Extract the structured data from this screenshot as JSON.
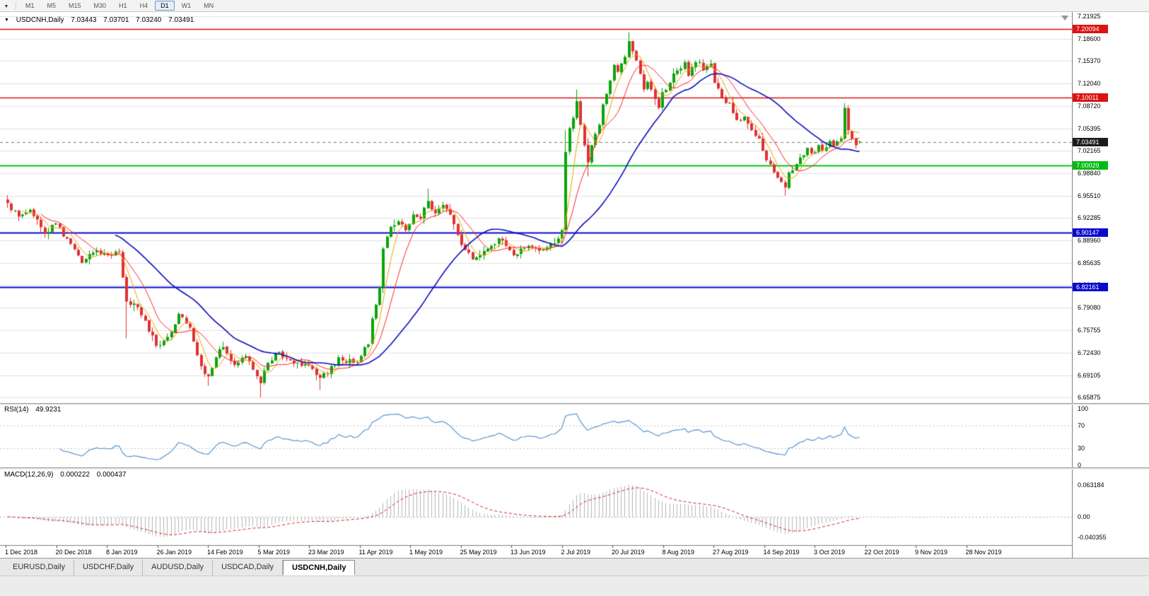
{
  "toolbar": {
    "dropdown_icon": "▼",
    "timeframes": [
      {
        "label": "M1",
        "active": false
      },
      {
        "label": "M5",
        "active": false
      },
      {
        "label": "M15",
        "active": false
      },
      {
        "label": "M30",
        "active": false
      },
      {
        "label": "H1",
        "active": false
      },
      {
        "label": "H4",
        "active": false
      },
      {
        "label": "D1",
        "active": true
      },
      {
        "label": "W1",
        "active": false
      },
      {
        "label": "MN",
        "active": false
      }
    ]
  },
  "chart": {
    "header": {
      "collapser": "▼",
      "symbol": "USDCNH,Daily",
      "open": "7.03443",
      "high": "7.03701",
      "low": "7.03240",
      "close": "7.03491"
    },
    "levels": [
      {
        "label": "7.20094",
        "price": 7.20094,
        "color": "#de1212",
        "badge": "#de1212",
        "width": 1.5,
        "style": "solid"
      },
      {
        "label": "7.10011",
        "price": 7.10011,
        "color": "#de1212",
        "badge": "#de1212",
        "width": 1.5,
        "style": "solid"
      },
      {
        "label": "7.03491",
        "price": 7.03491,
        "color": "#777777",
        "badge": "#1c1c1c",
        "width": 1,
        "style": "dashed"
      },
      {
        "label": "7.00029",
        "price": 7.00029,
        "color": "#00ca10",
        "badge": "#00bb12",
        "width": 2,
        "style": "solid"
      },
      {
        "label": "6.90147",
        "price": 6.90147,
        "color": "#0a0acd",
        "badge": "#0a0acd",
        "width": 2,
        "style": "solid"
      },
      {
        "label": "6.82161",
        "price": 6.82161,
        "color": "#0a0acd",
        "badge": "#0a0acd",
        "width": 2,
        "style": "solid"
      }
    ]
  },
  "chart_data": {
    "type": "candlestick",
    "title": "USDCNH Daily",
    "bars": 230,
    "price_range": [
      6.651,
      7.226
    ],
    "y_labels": [
      "7.21925",
      "7.18600",
      "7.15370",
      "7.12040",
      "7.08720",
      "7.05395",
      "7.02165",
      "6.98840",
      "6.95510",
      "6.92285",
      "6.88960",
      "6.85635",
      "6.82405",
      "6.79080",
      "6.75755",
      "6.72430",
      "6.69105",
      "6.65875"
    ],
    "x_labels": [
      "1 Dec 2018",
      "20 Dec 2018",
      "8 Jan 2019",
      "26 Jan 2019",
      "14 Feb 2019",
      "5 Mar 2019",
      "23 Mar 2019",
      "11 Apr 2019",
      "1 May 2019",
      "25 May 2019",
      "13 Jun 2019",
      "2 Jul 2019",
      "20 Jul 2019",
      "8 Aug 2019",
      "27 Aug 2019",
      "14 Sep 2019",
      "3 Oct 2019",
      "22 Oct 2019",
      "9 Nov 2019",
      "28 Nov 2019"
    ],
    "last_bar": {
      "open": 7.03443,
      "high": 7.03701,
      "low": 7.0324,
      "close": 7.03491
    },
    "close_anchors": [
      [
        0,
        6.945
      ],
      [
        3,
        6.925
      ],
      [
        6,
        6.935
      ],
      [
        10,
        6.9
      ],
      [
        13,
        6.915
      ],
      [
        17,
        6.885
      ],
      [
        20,
        6.857
      ],
      [
        24,
        6.875
      ],
      [
        28,
        6.868
      ],
      [
        30,
        6.873
      ],
      [
        32,
        6.8
      ],
      [
        35,
        6.792
      ],
      [
        37,
        6.772
      ],
      [
        40,
        6.735
      ],
      [
        43,
        6.748
      ],
      [
        46,
        6.782
      ],
      [
        49,
        6.762
      ],
      [
        52,
        6.705
      ],
      [
        54,
        6.69
      ],
      [
        56,
        6.718
      ],
      [
        58,
        6.733
      ],
      [
        61,
        6.707
      ],
      [
        64,
        6.72
      ],
      [
        66,
        6.7
      ],
      [
        68,
        6.68
      ],
      [
        70,
        6.71
      ],
      [
        73,
        6.726
      ],
      [
        75,
        6.716
      ],
      [
        78,
        6.71
      ],
      [
        81,
        6.706
      ],
      [
        84,
        6.688
      ],
      [
        86,
        6.694
      ],
      [
        89,
        6.718
      ],
      [
        93,
        6.71
      ],
      [
        95,
        6.72
      ],
      [
        97,
        6.737
      ],
      [
        98,
        6.775
      ],
      [
        100,
        6.822
      ],
      [
        101,
        6.878
      ],
      [
        103,
        6.91
      ],
      [
        105,
        6.918
      ],
      [
        107,
        6.905
      ],
      [
        109,
        6.928
      ],
      [
        111,
        6.922
      ],
      [
        113,
        6.948
      ],
      [
        115,
        6.93
      ],
      [
        117,
        6.942
      ],
      [
        119,
        6.928
      ],
      [
        121,
        6.898
      ],
      [
        123,
        6.876
      ],
      [
        125,
        6.862
      ],
      [
        127,
        6.868
      ],
      [
        130,
        6.882
      ],
      [
        132,
        6.893
      ],
      [
        134,
        6.882
      ],
      [
        136,
        6.868
      ],
      [
        138,
        6.878
      ],
      [
        140,
        6.882
      ],
      [
        143,
        6.875
      ],
      [
        145,
        6.88
      ],
      [
        147,
        6.886
      ],
      [
        149,
        6.905
      ],
      [
        150,
        7.02
      ],
      [
        151,
        7.055
      ],
      [
        152,
        7.07
      ],
      [
        153,
        7.095
      ],
      [
        154,
        7.06
      ],
      [
        155,
        7.03
      ],
      [
        156,
        7.005
      ],
      [
        157,
        7.03
      ],
      [
        159,
        7.06
      ],
      [
        160,
        7.09
      ],
      [
        162,
        7.125
      ],
      [
        163,
        7.148
      ],
      [
        164,
        7.138
      ],
      [
        166,
        7.16
      ],
      [
        167,
        7.183
      ],
      [
        168,
        7.168
      ],
      [
        170,
        7.135
      ],
      [
        171,
        7.112
      ],
      [
        172,
        7.123
      ],
      [
        174,
        7.098
      ],
      [
        175,
        7.085
      ],
      [
        176,
        7.108
      ],
      [
        178,
        7.122
      ],
      [
        180,
        7.14
      ],
      [
        182,
        7.152
      ],
      [
        183,
        7.132
      ],
      [
        184,
        7.145
      ],
      [
        186,
        7.152
      ],
      [
        187,
        7.14
      ],
      [
        189,
        7.15
      ],
      [
        190,
        7.122
      ],
      [
        192,
        7.1
      ],
      [
        194,
        7.092
      ],
      [
        196,
        7.067
      ],
      [
        198,
        7.072
      ],
      [
        200,
        7.052
      ],
      [
        202,
        7.04
      ],
      [
        203,
        7.022
      ],
      [
        205,
        7.002
      ],
      [
        206,
        6.99
      ],
      [
        208,
        6.976
      ],
      [
        209,
        6.968
      ],
      [
        210,
        6.99
      ],
      [
        212,
        7.002
      ],
      [
        213,
        7.012
      ],
      [
        215,
        7.026
      ],
      [
        216,
        7.018
      ],
      [
        218,
        7.03
      ],
      [
        219,
        7.022
      ],
      [
        221,
        7.036
      ],
      [
        222,
        7.028
      ],
      [
        224,
        7.04
      ],
      [
        225,
        7.085
      ],
      [
        226,
        7.052
      ],
      [
        227,
        7.04
      ],
      [
        228,
        7.03
      ],
      [
        229,
        7.0349
      ]
    ],
    "special_wicks": [
      {
        "i": 32,
        "low": 6.746
      },
      {
        "i": 54,
        "low": 6.676
      },
      {
        "i": 68,
        "low": 6.659
      },
      {
        "i": 84,
        "low": 6.67
      },
      {
        "i": 113,
        "high": 6.966
      },
      {
        "i": 150,
        "high": 7.052
      },
      {
        "i": 153,
        "high": 7.112
      },
      {
        "i": 156,
        "low": 6.984
      },
      {
        "i": 167,
        "high": 7.196
      },
      {
        "i": 209,
        "low": 6.956
      },
      {
        "i": 225,
        "high": 7.092
      }
    ],
    "candle_colors": {
      "up": "#0aa50a",
      "down": "#df3232"
    },
    "moving_averages": [
      {
        "name": "ma-fast",
        "period": 5,
        "type": "sma",
        "color": "#eea200",
        "width": 1
      },
      {
        "name": "ma-mid",
        "period": 10,
        "type": "sma",
        "color": "#ff2626",
        "width": 1
      },
      {
        "name": "ma-slow",
        "period": 30,
        "type": "sma",
        "color": "#0d0dc0",
        "width": 1.6
      }
    ],
    "indicators": {
      "rsi": {
        "label": "RSI(14)",
        "value": "49.9231",
        "period": 14,
        "axis_labels": [
          "100",
          "70",
          "30",
          "0"
        ],
        "levels": [
          70,
          30
        ],
        "color": "#4a8fd0"
      },
      "macd": {
        "label": "MACD(12,26,9)",
        "value1": "0.000222",
        "value2": "0.000437",
        "fast": 12,
        "slow": 26,
        "signal": 9,
        "axis_labels": [
          "0.063184",
          "0.00",
          "-0.040355"
        ],
        "histogram_color": "#b5b5b5",
        "signal_color": "#dd2020"
      }
    }
  },
  "tabs": {
    "items": [
      {
        "label": "EURUSD,Daily",
        "active": false
      },
      {
        "label": "USDCHF,Daily",
        "active": false
      },
      {
        "label": "AUDUSD,Daily",
        "active": false
      },
      {
        "label": "USDCAD,Daily",
        "active": false
      },
      {
        "label": "USDCNH,Daily",
        "active": true
      }
    ]
  }
}
